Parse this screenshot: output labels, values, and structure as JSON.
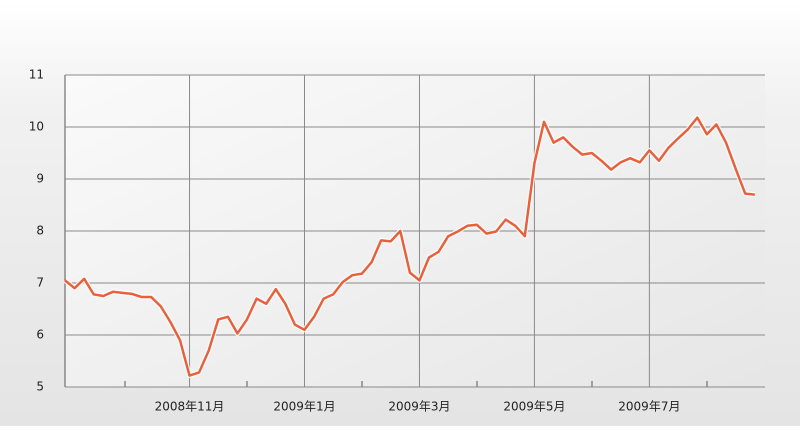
{
  "chart_data": {
    "type": "line",
    "categories": [
      null,
      null,
      null,
      null,
      null,
      null,
      null,
      null,
      null,
      null,
      null,
      null,
      null,
      "2008年11月",
      null,
      null,
      null,
      null,
      null,
      null,
      null,
      null,
      null,
      null,
      null,
      "2009年1月",
      null,
      null,
      null,
      null,
      null,
      null,
      null,
      null,
      null,
      null,
      null,
      "2009年3月",
      null,
      null,
      null,
      null,
      null,
      null,
      null,
      null,
      null,
      null,
      null,
      "2009年5月",
      null,
      null,
      null,
      null,
      null,
      null,
      null,
      null,
      null,
      null,
      null,
      "2009年7月",
      null,
      null,
      null,
      null,
      null,
      null,
      null,
      null,
      null,
      null,
      null
    ],
    "series": [
      {
        "color": "#e8613c",
        "values": [
          7.05,
          6.9,
          7.08,
          6.78,
          6.75,
          6.83,
          6.81,
          6.79,
          6.73,
          6.73,
          6.55,
          6.25,
          5.9,
          5.22,
          5.28,
          5.7,
          6.3,
          6.35,
          6.03,
          6.3,
          6.7,
          6.6,
          6.88,
          6.6,
          6.2,
          6.1,
          6.35,
          6.7,
          6.78,
          7.02,
          7.15,
          7.18,
          7.4,
          7.82,
          7.8,
          8.0,
          7.2,
          7.05,
          7.49,
          7.6,
          7.9,
          7.99,
          8.1,
          8.12,
          7.95,
          7.99,
          8.22,
          8.1,
          7.9,
          9.3,
          10.1,
          9.7,
          9.8,
          9.62,
          9.47,
          9.5,
          9.35,
          9.18,
          9.32,
          9.4,
          9.32,
          9.55,
          9.35,
          9.6,
          9.78,
          9.95,
          10.18,
          9.86,
          10.05,
          9.7,
          9.2,
          8.72,
          8.7
        ]
      }
    ],
    "ylim": [
      5,
      11
    ],
    "yticks": [
      5,
      6,
      7,
      8,
      9,
      10,
      11
    ],
    "grid": true
  }
}
